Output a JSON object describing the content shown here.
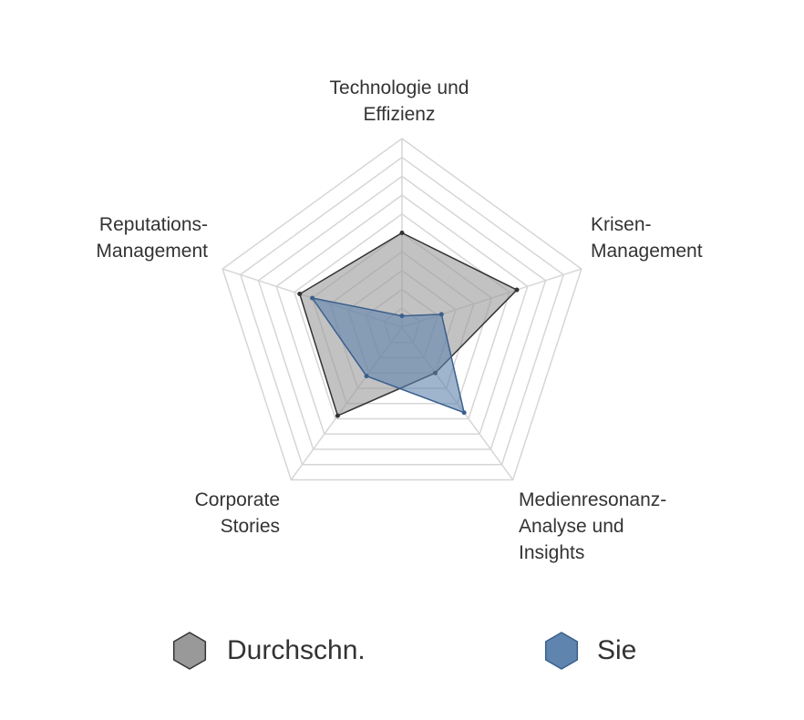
{
  "chart_data": {
    "type": "radar",
    "categories": [
      "Technologie und\nEffizienz",
      "Krisen-\nManagement",
      "Medienresonanz-\nAnalyse und\nInsights",
      "Corporate\nStories",
      "Reputations-\nManagement"
    ],
    "series": [
      {
        "name": "Durchschn.",
        "color": "#999999",
        "stroke": "#333333",
        "values": [
          5,
          6.4,
          3,
          5.8,
          5.7
        ]
      },
      {
        "name": "Sie",
        "color": "#5f84ad",
        "stroke": "#3b5f8c",
        "values": [
          0.6,
          2.2,
          5.6,
          3.2,
          5
        ]
      }
    ],
    "ylim": [
      0,
      10
    ],
    "yticks": [
      0,
      1,
      2,
      3,
      4,
      5,
      6,
      7,
      8,
      9,
      10
    ],
    "grid": true
  }
}
